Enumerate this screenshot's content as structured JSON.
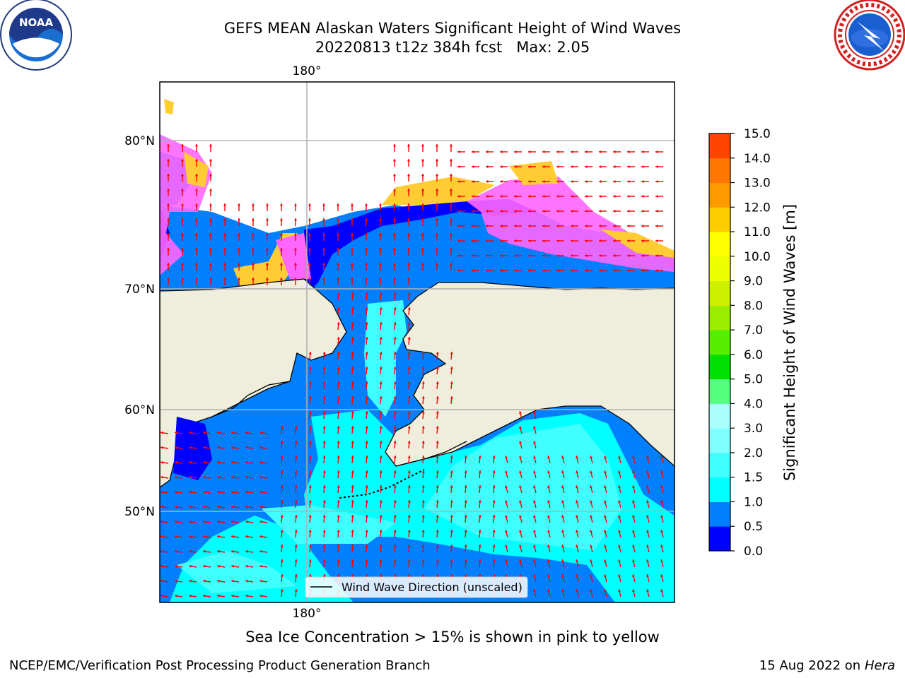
{
  "header": {
    "title_line1": "GEFS MEAN Alaskan Waters Significant Height of Wind Waves",
    "title_date": "20220813 t12z 384h fcst",
    "title_max": "Max: 2.05"
  },
  "logos": {
    "left": {
      "icon": "noaa-logo-icon",
      "text": "NOAA"
    },
    "right": {
      "icon": "nws-logo-icon"
    }
  },
  "map": {
    "top_lon_label": "180°",
    "bottom_lon_label": "180°",
    "lat_labels": [
      "80°N",
      "70°N",
      "60°N",
      "50°N"
    ],
    "legend_label": "Wind Wave Direction (unscaled)",
    "colors": {
      "land": "#efeddb",
      "wave_0_05": "#0000ff",
      "wave_05_1": "#0080ff",
      "wave_1_15": "#00ffff",
      "wave_15_2": "#40ffff",
      "ice_pink": "#ff66ff",
      "ice_yellow": "#ffcc33",
      "arrows": "#ff0000"
    }
  },
  "colorbar": {
    "title": "Significant Height of Wind Waves [m]",
    "ticks": [
      "0.0",
      "0.5",
      "1.0",
      "1.5",
      "2.0",
      "3.0",
      "4.0",
      "5.0",
      "6.0",
      "7.0",
      "8.0",
      "9.0",
      "10.0",
      "11.0",
      "12.0",
      "13.0",
      "14.0",
      "15.0"
    ],
    "colors": [
      "#0000ff",
      "#0080ff",
      "#00ffff",
      "#40ffff",
      "#80ffff",
      "#aaffff",
      "#55ff80",
      "#00e000",
      "#55ee00",
      "#99ee00",
      "#ccf000",
      "#eeff00",
      "#ffff00",
      "#ffcc00",
      "#ff9900",
      "#ff7700",
      "#ff4400",
      "#ff2200",
      "#ff0000"
    ]
  },
  "caption": "Sea Ice Concentration > 15% is shown in pink to yellow",
  "footer": {
    "left": "NCEP/EMC/Verification Post Processing Product Generation Branch",
    "date": "15 Aug 2022 on",
    "machine": "Hera"
  }
}
